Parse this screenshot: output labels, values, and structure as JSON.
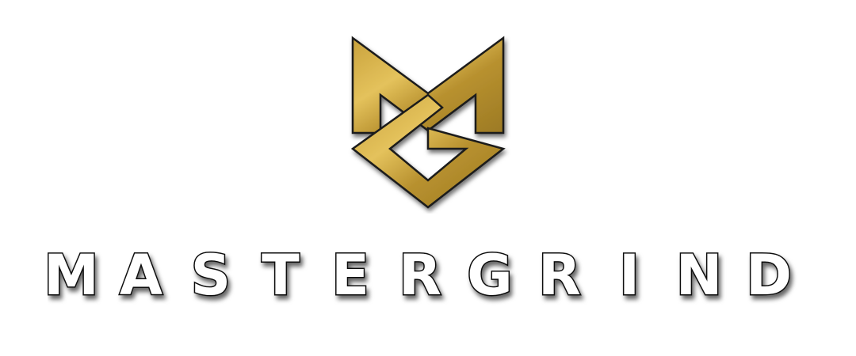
{
  "brand": {
    "name": "MASTERGRIND",
    "letters": [
      "M",
      "A",
      "S",
      "T",
      "E",
      "R",
      "G",
      "R",
      "I",
      "N",
      "D"
    ],
    "emblem_icon": "mg-monogram-icon"
  },
  "colors": {
    "background": "#ffffff",
    "gold_light": "#e4c25c",
    "gold_mid": "#c9a23c",
    "gold_dark": "#9c7a24",
    "outline": "#1a1a1a",
    "letter_fill": "#ffffff",
    "letter_stroke": "#111111",
    "shadow": "#000000"
  }
}
